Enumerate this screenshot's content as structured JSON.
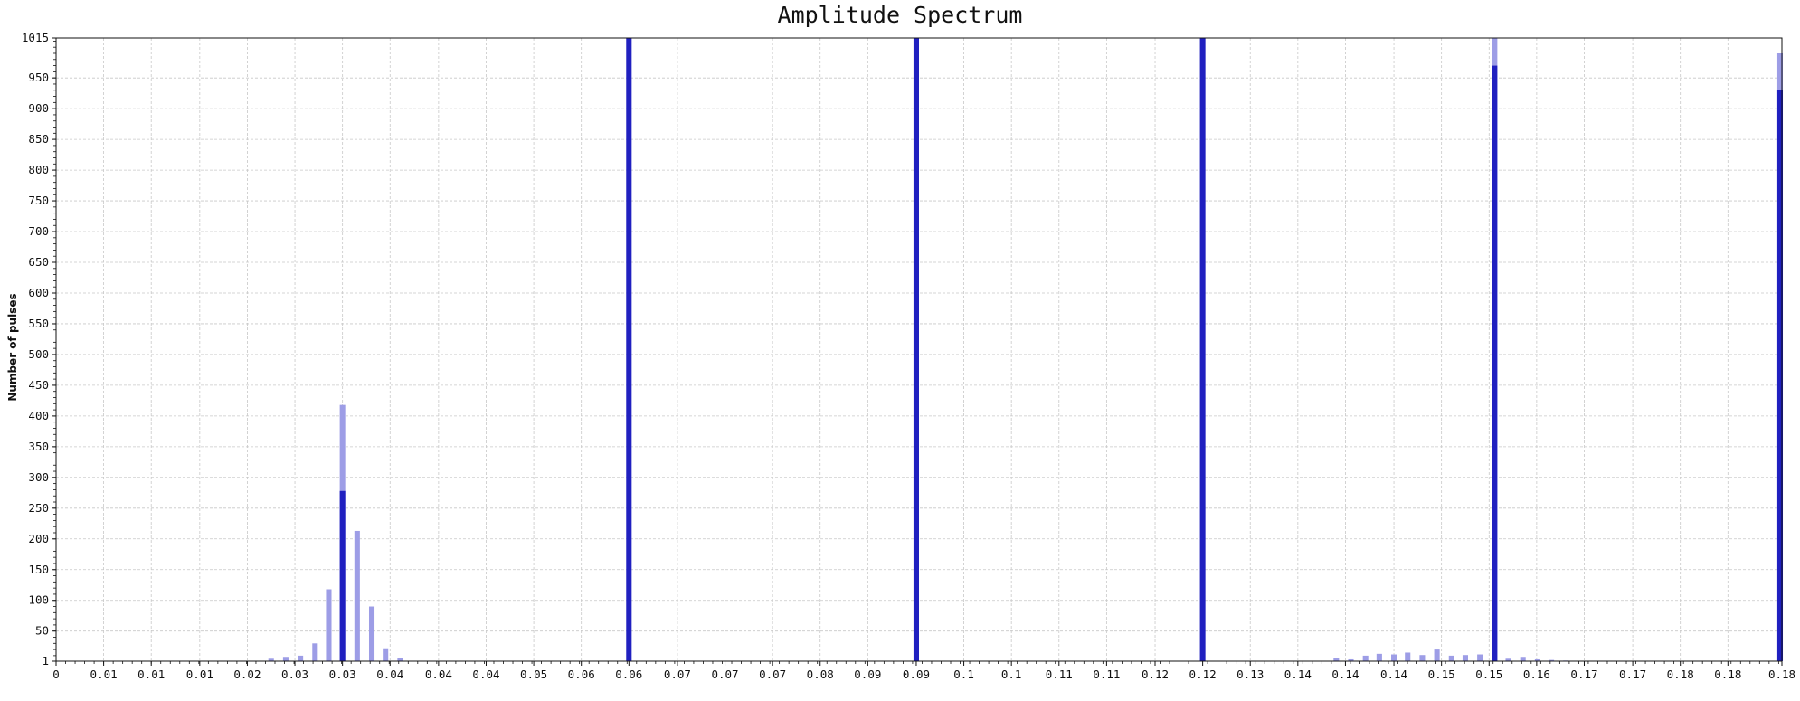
{
  "chart_data": {
    "type": "bar",
    "title": "Amplitude Spectrum",
    "xlabel": "",
    "ylabel": "Number of pulses",
    "xlim": [
      0,
      0.1886
    ],
    "ylim": [
      1,
      1015
    ],
    "grid": true,
    "x_tick_values": [
      0,
      0.0052,
      0.0104,
      0.0157,
      0.0209,
      0.0261,
      0.0313,
      0.0365,
      0.0418,
      0.047,
      0.0522,
      0.0574,
      0.0626,
      0.0679,
      0.0731,
      0.0783,
      0.0835,
      0.0887,
      0.094,
      0.0992,
      0.1044,
      0.1096,
      0.1148,
      0.1201,
      0.1253,
      0.1305,
      0.1357,
      0.1409,
      0.1462,
      0.1514,
      0.1566,
      0.1618,
      0.167,
      0.1723,
      0.1775,
      0.1827,
      0.1886
    ],
    "x_tick_labels": [
      "0",
      "0.01",
      "0.01",
      "0.01",
      "0.02",
      "0.03",
      "0.03",
      "0.04",
      "0.04",
      "0.04",
      "0.05",
      "0.06",
      "0.06",
      "0.07",
      "0.07",
      "0.07",
      "0.08",
      "0.09",
      "0.09",
      "0.1",
      "0.1",
      "0.11",
      "0.11",
      "0.12",
      "0.12",
      "0.13",
      "0.14",
      "0.14",
      "0.14",
      "0.15",
      "0.15",
      "0.16",
      "0.17",
      "0.17",
      "0.18",
      "0.18",
      "0.18"
    ],
    "y_tick_values": [
      1,
      50,
      100,
      150,
      200,
      250,
      300,
      350,
      400,
      450,
      500,
      550,
      600,
      650,
      700,
      750,
      800,
      850,
      900,
      950,
      1015
    ],
    "y_tick_labels": [
      "1",
      "50",
      "100",
      "150",
      "200",
      "250",
      "300",
      "350",
      "400",
      "450",
      "500",
      "550",
      "600",
      "650",
      "700",
      "750",
      "800",
      "850",
      "900",
      "950",
      "1015"
    ],
    "series": [
      {
        "color": "#9d9de6",
        "x": [
          0.0235,
          0.0251,
          0.0267,
          0.0283,
          0.0298,
          0.0313,
          0.0329,
          0.0345,
          0.036,
          0.0376,
          0.1399,
          0.1415,
          0.1431,
          0.1446,
          0.1462,
          0.1477,
          0.1493,
          0.1509,
          0.1525,
          0.154,
          0.1556,
          0.1572,
          0.1587,
          0.1603,
          0.1619,
          0.1634,
          0.165,
          0.1666,
          0.1681,
          0.1697,
          0.1884
        ],
        "values": [
          5,
          8,
          10,
          30,
          118,
          418,
          213,
          90,
          22,
          6,
          6,
          4,
          10,
          13,
          12,
          15,
          11,
          20,
          10,
          11,
          12,
          1015,
          5,
          8,
          4,
          3,
          2,
          1,
          1,
          1,
          990
        ]
      },
      {
        "color": "#2020c0",
        "x": [
          0.0313,
          0.0626,
          0.094,
          0.1253,
          0.1572,
          0.1884
        ],
        "values": [
          278,
          1015,
          1015,
          1015,
          970,
          930
        ]
      }
    ]
  }
}
